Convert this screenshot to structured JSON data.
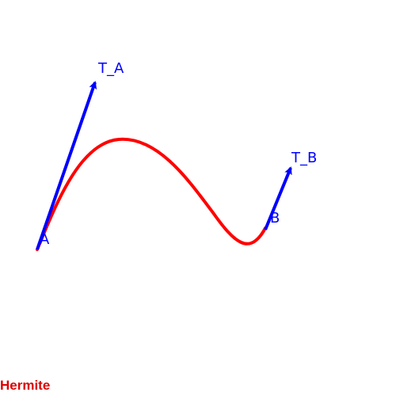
{
  "diagram": {
    "caption": "Hermite",
    "point_a_label": "A",
    "point_b_label": "B",
    "tangent_a_label": "T_A",
    "tangent_b_label": "T_B"
  },
  "colors": {
    "curve": "#ff0000",
    "vectors": "#0000ff",
    "labels": "#0000ff",
    "caption": "#dd0000",
    "background": "#ffffff"
  },
  "icons": {
    "tangent_arrowhead": "arrowhead-icon"
  }
}
